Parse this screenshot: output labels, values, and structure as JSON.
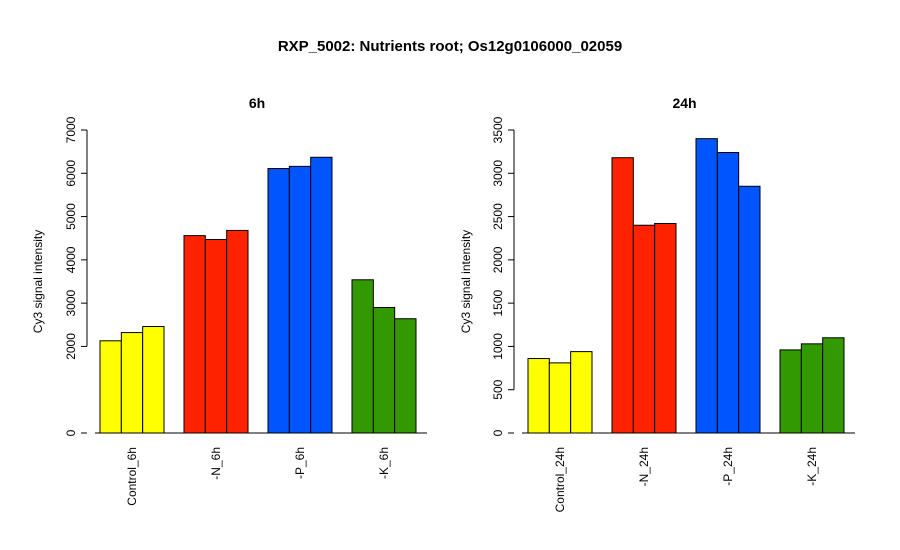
{
  "title": "RXP_5002: Nutrients root; Os12g0106000_02059",
  "chart_data": [
    {
      "type": "bar",
      "title": "6h",
      "ylabel": "Cy3 signal intensity",
      "yticks": [
        0,
        2000,
        3000,
        4000,
        5000,
        6000,
        7000
      ],
      "ylim": [
        0,
        7000
      ],
      "categories": [
        "Control_6h",
        "-N_6h",
        "-P_6h",
        "-K_6h"
      ],
      "colors": [
        "#ffff00",
        "#ff2200",
        "#0055ff",
        "#339900"
      ],
      "values": [
        [
          2130,
          2320,
          2460
        ],
        [
          4560,
          4470,
          4680
        ],
        [
          6110,
          6160,
          6370
        ],
        [
          3540,
          2900,
          2640
        ]
      ]
    },
    {
      "type": "bar",
      "title": "24h",
      "ylabel": "Cy3 signal intensity",
      "yticks": [
        0,
        500,
        1000,
        1500,
        2000,
        2500,
        3000,
        3500
      ],
      "ylim": [
        0,
        3500
      ],
      "categories": [
        "Control_24h",
        "-N_24h",
        "-P_24h",
        "-K_24h"
      ],
      "colors": [
        "#ffff00",
        "#ff2200",
        "#0055ff",
        "#339900"
      ],
      "values": [
        [
          860,
          810,
          940
        ],
        [
          3180,
          2400,
          2420
        ],
        [
          3400,
          3240,
          2850
        ],
        [
          960,
          1030,
          1100
        ]
      ]
    }
  ]
}
